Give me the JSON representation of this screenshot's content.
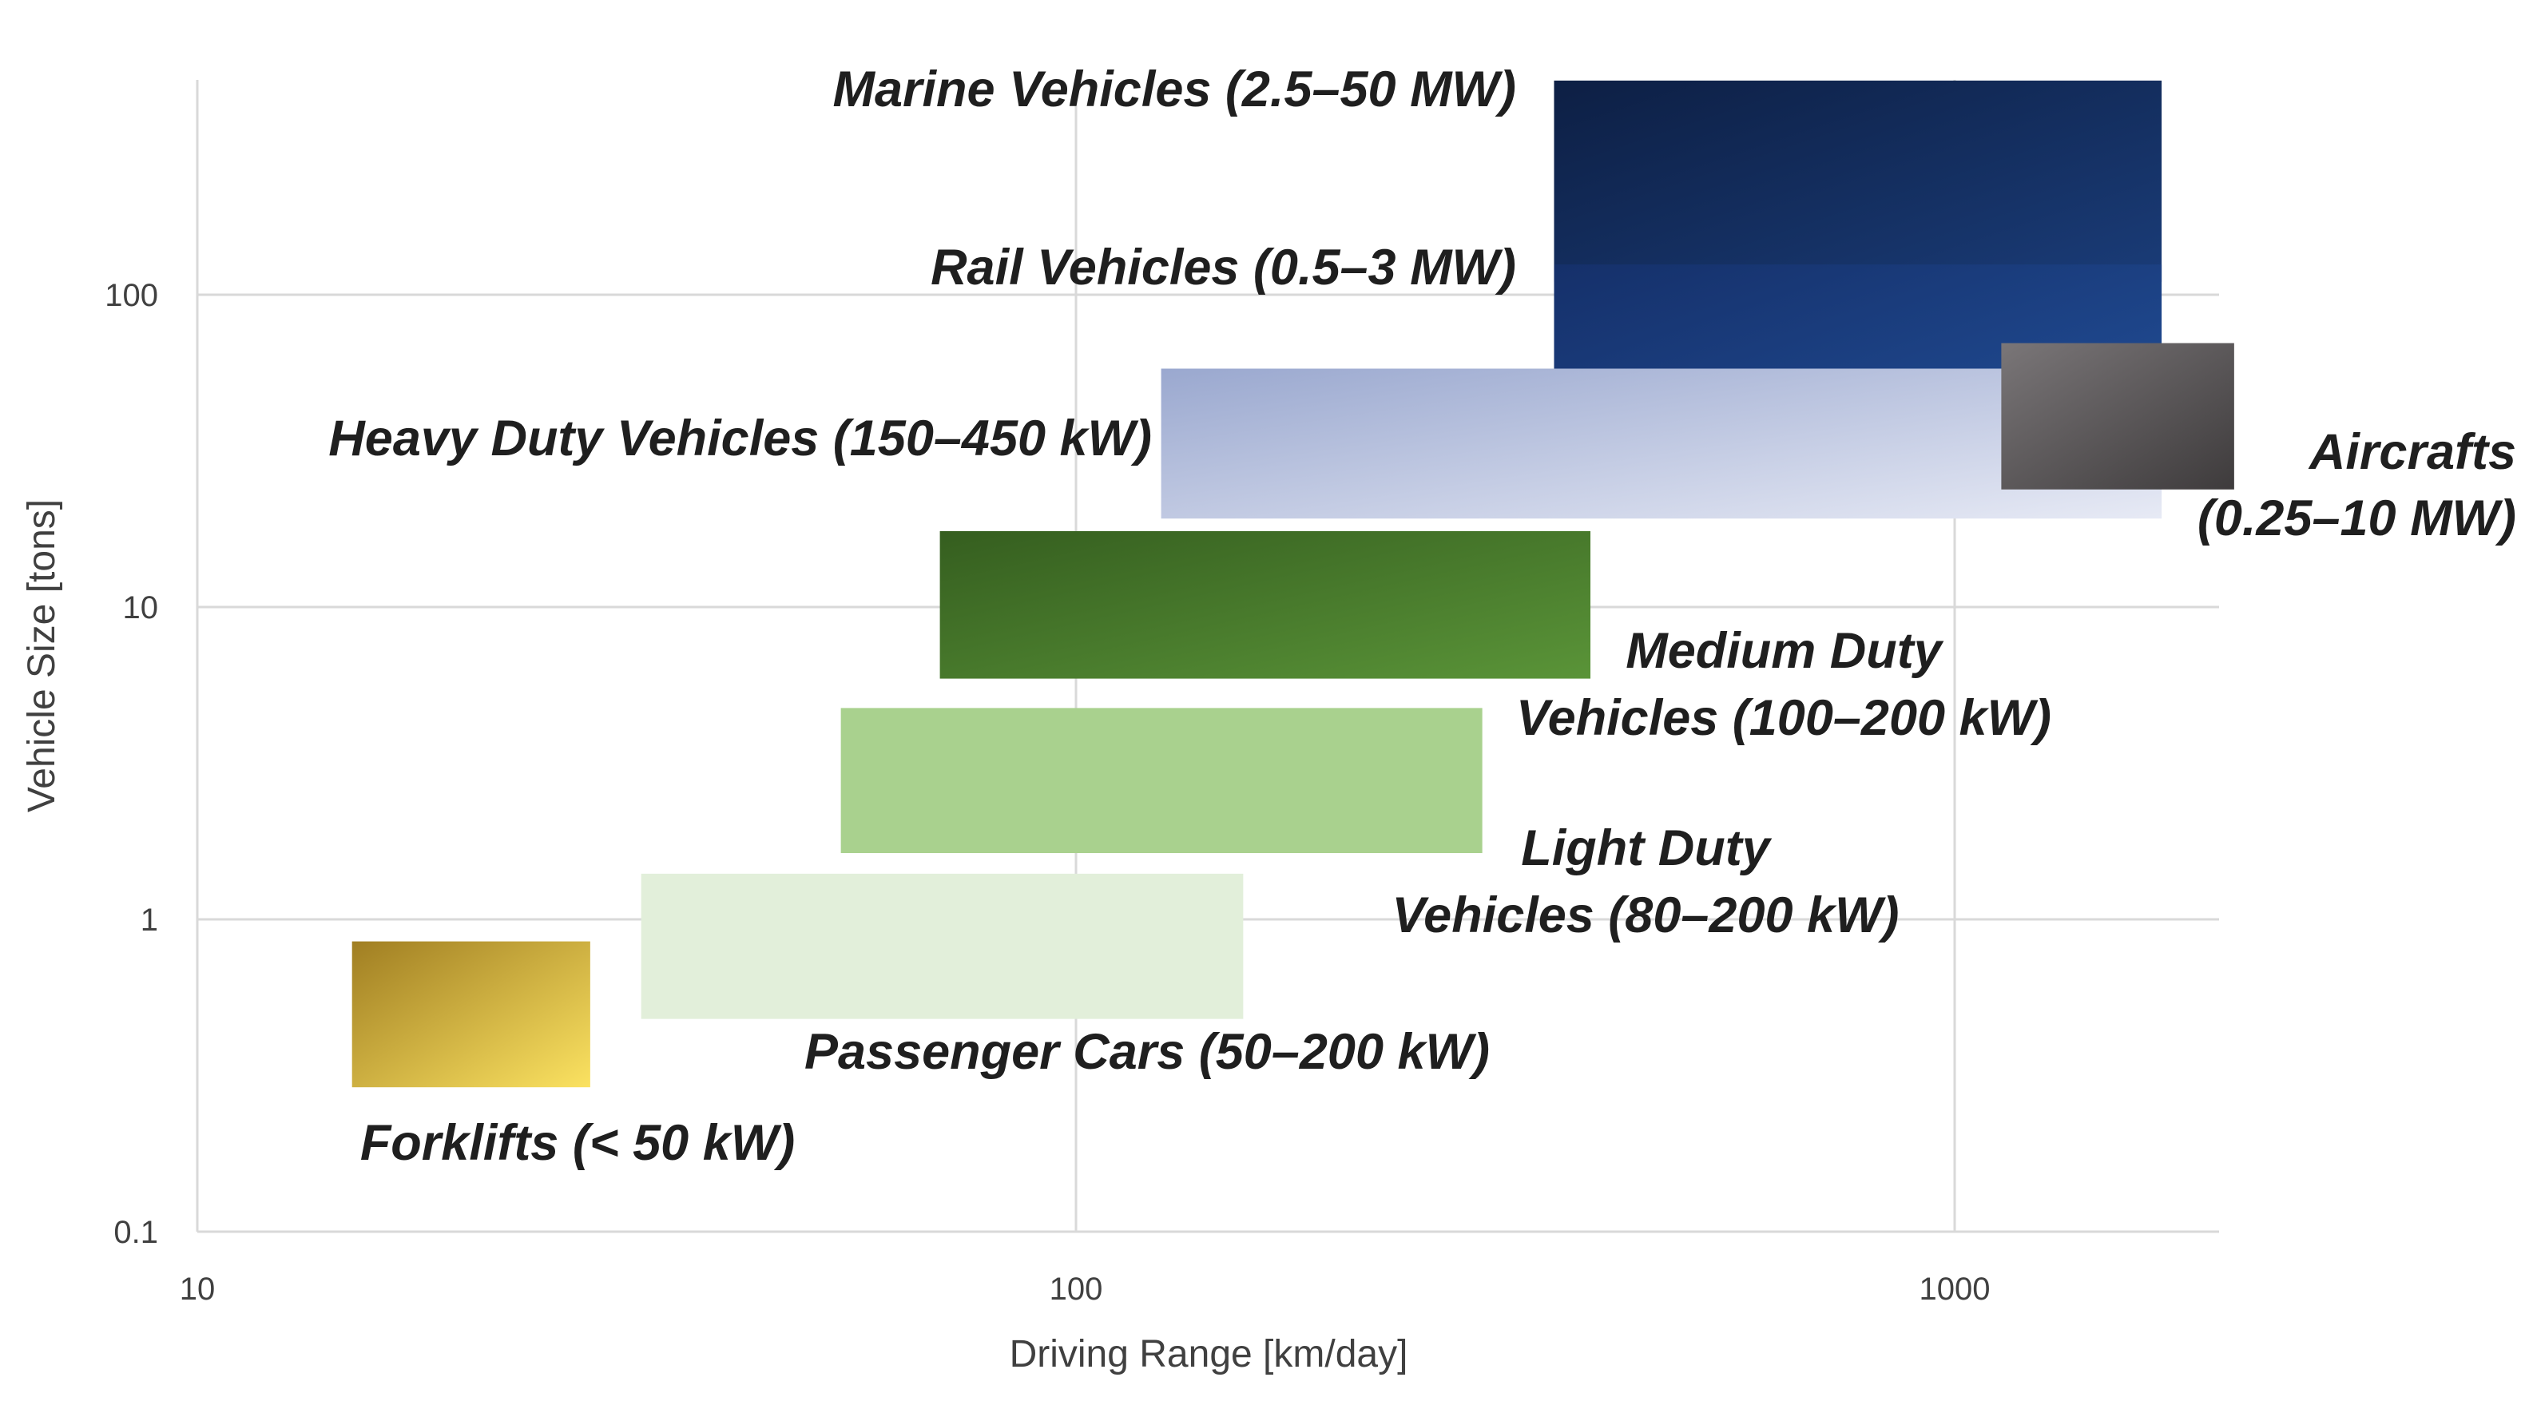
{
  "chart_data": {
    "type": "range",
    "x_scale": "log",
    "y_scale": "log",
    "xlabel": "Driving Range [km/day]",
    "ylabel": "Vehicle Size [tons]",
    "xlim": [
      10,
      2000
    ],
    "ylim": [
      0.1,
      500
    ],
    "x_ticks": [
      10,
      100,
      1000
    ],
    "x_tick_labels": [
      "10",
      "100",
      "1000"
    ],
    "y_ticks": [
      0.1,
      1,
      10,
      100
    ],
    "y_tick_labels": [
      "0.1",
      "1",
      "10",
      "100"
    ],
    "grid": true,
    "series": [
      {
        "id": "marine",
        "name": "Marine Vehicles",
        "power": "(2.5–50 MW)",
        "label_lines": [
          "Marine Vehicles (2.5–50 MW)"
        ],
        "x_range": [
          350,
          1720
        ],
        "y_range": [
          110,
          485
        ],
        "colors": [
          "#0d1f44",
          "#1a3c78"
        ]
      },
      {
        "id": "rail",
        "name": "Rail Vehicles",
        "power": "(0.5–3 MW)",
        "label_lines": [
          "Rail Vehicles (0.5–3 MW)"
        ],
        "x_range": [
          350,
          1720
        ],
        "y_range": [
          28,
          125
        ],
        "colors": [
          "#15306a",
          "#22509a"
        ]
      },
      {
        "id": "heavy",
        "name": "Heavy Duty Vehicles",
        "power": "(150–450 kW)",
        "label_lines": [
          "Heavy Duty Vehicles (150–450 kW)"
        ],
        "x_range": [
          125,
          1720
        ],
        "y_range": [
          19.2,
          58
        ],
        "colors": [
          "#9aa8cf",
          "#e7eaf5"
        ]
      },
      {
        "id": "aircraft",
        "name": "Aircrafts",
        "power": "(0.25–10 MW)",
        "label_lines": [
          "Aircrafts",
          "(0.25–10 MW)"
        ],
        "x_range": [
          1130,
          2080
        ],
        "y_range": [
          23.8,
          70
        ],
        "colors": [
          "#7a7678",
          "#3e3b3c"
        ]
      },
      {
        "id": "medium",
        "name": "Medium Duty Vehicles",
        "power": "(100–200 kW)",
        "label_lines": [
          "Medium Duty",
          "Vehicles (100–200 kW)"
        ],
        "x_range": [
          70,
          385
        ],
        "y_range": [
          5.9,
          17.5
        ],
        "colors": [
          "#355e1f",
          "#5a9438"
        ]
      },
      {
        "id": "light",
        "name": "Light Duty Vehicles",
        "power": "(80–200 kW)",
        "label_lines": [
          "Light Duty",
          "Vehicles (80–200 kW)"
        ],
        "x_range": [
          54,
          290
        ],
        "y_range": [
          1.63,
          4.75
        ],
        "colors": [
          "#a9d18e",
          "#a9d18e"
        ]
      },
      {
        "id": "passenger",
        "name": "Passenger Cars",
        "power": "(50–200 kW)",
        "label_lines": [
          "Passenger Cars (50–200 kW)"
        ],
        "x_range": [
          32,
          155
        ],
        "y_range": [
          0.48,
          1.4
        ],
        "colors": [
          "#e2efda",
          "#e2efda"
        ]
      },
      {
        "id": "forklift",
        "name": "Forklifts",
        "power": "(< 50 kW)",
        "label_lines": [
          "Forklifts (< 50 kW)"
        ],
        "x_range": [
          15,
          28
        ],
        "y_range": [
          0.29,
          0.85
        ],
        "colors": [
          "#a07e22",
          "#fbe261"
        ]
      }
    ]
  }
}
